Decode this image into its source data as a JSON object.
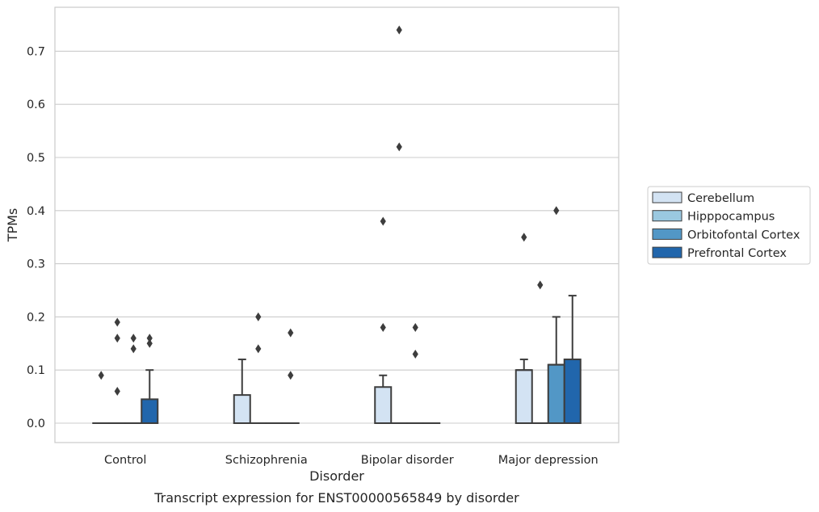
{
  "caption": "Transcript expression for ENST00000565849 by disorder",
  "chart_data": {
    "type": "boxplot",
    "title": "",
    "xlabel": "Disorder",
    "ylabel": "TPMs",
    "ylim": [
      -0.036,
      0.78
    ],
    "yticks": [
      "0.0",
      "0.1",
      "0.2",
      "0.3",
      "0.4",
      "0.5",
      "0.6",
      "0.7"
    ],
    "grid": "horizontal",
    "legend_position": "right",
    "categories": [
      "Control",
      "Schizophrenia",
      "Bipolar disorder",
      "Major depression"
    ],
    "series": [
      {
        "name": "Cerebellum",
        "color": "#d3e3f3",
        "boxes": [
          {
            "q1": 0,
            "median": 0,
            "q3": 0,
            "whisker_low": 0,
            "whisker_high": 0,
            "outliers": [
              0.09
            ]
          },
          {
            "q1": 0,
            "median": 0,
            "q3": 0.053,
            "whisker_low": 0,
            "whisker_high": 0.12,
            "outliers": []
          },
          {
            "q1": 0,
            "median": 0,
            "q3": 0.068,
            "whisker_low": 0,
            "whisker_high": 0.09,
            "outliers": [
              0.18,
              0.38
            ]
          },
          {
            "q1": 0,
            "median": 0.1,
            "q3": 0.1,
            "whisker_low": 0,
            "whisker_high": 0.12,
            "outliers": [
              0.35
            ]
          }
        ]
      },
      {
        "name": "Hipppocampus",
        "color": "#9ac8e0",
        "boxes": [
          {
            "q1": 0,
            "median": 0,
            "q3": 0,
            "whisker_low": 0,
            "whisker_high": 0,
            "outliers": [
              0.06,
              0.16,
              0.19
            ]
          },
          {
            "q1": 0,
            "median": 0,
            "q3": 0,
            "whisker_low": 0,
            "whisker_high": 0,
            "outliers": [
              0.14,
              0.2
            ]
          },
          {
            "q1": 0,
            "median": 0,
            "q3": 0,
            "whisker_low": 0,
            "whisker_high": 0,
            "outliers": [
              0.52,
              0.74
            ]
          },
          {
            "q1": 0,
            "median": 0,
            "q3": 0,
            "whisker_low": 0,
            "whisker_high": 0,
            "outliers": [
              0.26
            ]
          }
        ]
      },
      {
        "name": "Orbitofontal Cortex",
        "color": "#5297c6",
        "boxes": [
          {
            "q1": 0,
            "median": 0,
            "q3": 0,
            "whisker_low": 0,
            "whisker_high": 0,
            "outliers": [
              0.14,
              0.16
            ]
          },
          {
            "q1": 0,
            "median": 0,
            "q3": 0,
            "whisker_low": 0,
            "whisker_high": 0,
            "outliers": []
          },
          {
            "q1": 0,
            "median": 0,
            "q3": 0,
            "whisker_low": 0,
            "whisker_high": 0,
            "outliers": [
              0.13,
              0.18
            ]
          },
          {
            "q1": 0,
            "median": 0.11,
            "q3": 0.11,
            "whisker_low": 0,
            "whisker_high": 0.2,
            "outliers": [
              0.4
            ]
          }
        ]
      },
      {
        "name": "Prefrontal Cortex",
        "color": "#2166ac",
        "boxes": [
          {
            "q1": 0,
            "median": 0,
            "q3": 0.045,
            "whisker_low": 0,
            "whisker_high": 0.1,
            "outliers": [
              0.15,
              0.16
            ]
          },
          {
            "q1": 0,
            "median": 0,
            "q3": 0,
            "whisker_low": 0,
            "whisker_high": 0,
            "outliers": [
              0.09,
              0.17
            ]
          },
          {
            "q1": 0,
            "median": 0,
            "q3": 0,
            "whisker_low": 0,
            "whisker_high": 0,
            "outliers": []
          },
          {
            "q1": 0,
            "median": 0.12,
            "q3": 0.12,
            "whisker_low": 0,
            "whisker_high": 0.24,
            "outliers": []
          }
        ]
      }
    ]
  }
}
